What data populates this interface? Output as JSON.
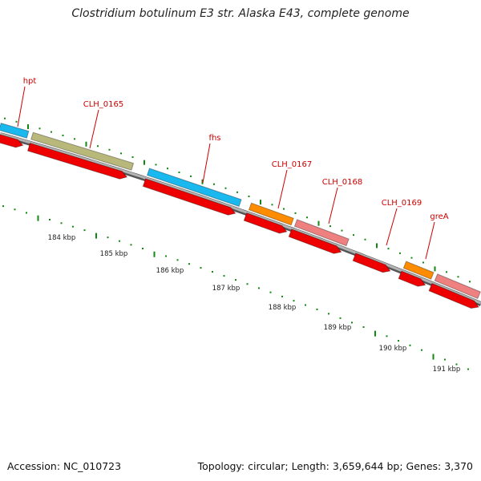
{
  "title": "Clostridium botulinum E3 str. Alaska E43, complete genome",
  "footer": {
    "accession": "Accession: NC_010723",
    "topology": "Topology: circular; Length: 3,659,644 bp; Genes: 3,370"
  },
  "colors": {
    "label": "#cc0000",
    "axis_tick": "#118811",
    "backbone": "#7a7a7a",
    "cds": "#ee0000",
    "cyan": "#19b8ee",
    "olive": "#b8b87a",
    "orange": "#ff8c00",
    "pink": "#ee8080"
  },
  "gene_labels": [
    "hpt",
    "CLH_0165",
    "fhs",
    "CLH_0167",
    "CLH_0168",
    "CLH_0169",
    "greA"
  ],
  "scale_labels": [
    "184 kbp",
    "185 kbp",
    "186 kbp",
    "187 kbp",
    "188 kbp",
    "189 kbp",
    "190 kbp",
    "191 kbp"
  ]
}
